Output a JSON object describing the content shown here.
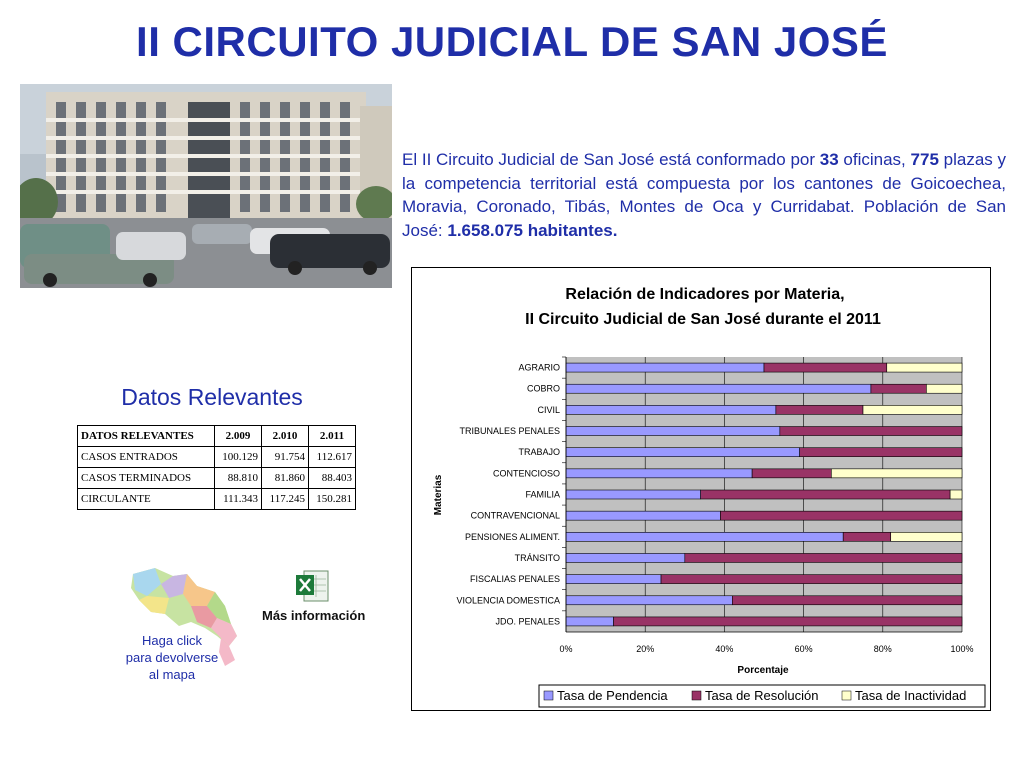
{
  "title": "II CIRCUITO JUDICIAL DE SAN JOSÉ",
  "intro": {
    "part1": "El II Circuito Judicial de San José está conformado por ",
    "offices": "33",
    "part2": " oficinas, ",
    "plazas": "775",
    "part3": " plazas y la competencia territorial está compuesta por los cantones de Goicoechea, Moravia, Coronado, Tibás, Montes de Oca y Curridabat. Población de San José: ",
    "population": "1.658.075 habitantes."
  },
  "datos": {
    "heading": "Datos Relevantes",
    "columns": [
      "DATOS RELEVANTES",
      "2.009",
      "2.010",
      "2.011"
    ],
    "rows": [
      [
        "CASOS ENTRADOS",
        "100.129",
        "91.754",
        "112.617"
      ],
      [
        "CASOS TERMINADOS",
        "88.810",
        "81.860",
        "88.403"
      ],
      [
        "CIRCULANTE",
        "111.343",
        "117.245",
        "150.281"
      ]
    ]
  },
  "map_caption": [
    "Haga click",
    "para devolverse",
    "al mapa"
  ],
  "more_info": "Más información",
  "colors": {
    "title": "#1f2ea8",
    "pendencia": "#9999ff",
    "resolucion": "#993366",
    "inactividad": "#ffffcc",
    "plot_bg": "#c0c0c0"
  },
  "chart_data": {
    "type": "bar",
    "orientation": "horizontal",
    "stacked": "percent",
    "title": "Relación de Indicadores por Materia,",
    "subtitle": "II Circuito Judicial de San José durante el 2011",
    "xlabel": "Porcentaje",
    "ylabel": "Materias",
    "xlim": [
      0,
      100
    ],
    "xticks": [
      "0%",
      "20%",
      "40%",
      "60%",
      "80%",
      "100%"
    ],
    "legend_position": "bottom",
    "grid": true,
    "categories": [
      "AGRARIO",
      "COBRO",
      "CIVIL",
      "TRIBUNALES PENALES",
      "TRABAJO",
      "CONTENCIOSO",
      "FAMILIA",
      "CONTRAVENCIONAL",
      "PENSIONES ALIMENT.",
      "TRÁNSITO",
      "FISCALIAS PENALES",
      "VIOLENCIA DOMESTICA",
      "JDO. PENALES"
    ],
    "series": [
      {
        "name": "Tasa de Pendencia",
        "color": "#9999ff",
        "values": [
          50,
          77,
          53,
          54,
          59,
          47,
          34,
          39,
          70,
          30,
          24,
          42,
          12
        ]
      },
      {
        "name": "Tasa de Resolución",
        "color": "#993366",
        "values": [
          31,
          14,
          22,
          46,
          41,
          20,
          63,
          61,
          12,
          70,
          76,
          58,
          88
        ]
      },
      {
        "name": "Tasa de Inactividad",
        "color": "#ffffcc",
        "values": [
          19,
          9,
          25,
          0,
          0,
          33,
          3,
          0,
          18,
          0,
          0,
          0,
          0
        ]
      }
    ]
  }
}
